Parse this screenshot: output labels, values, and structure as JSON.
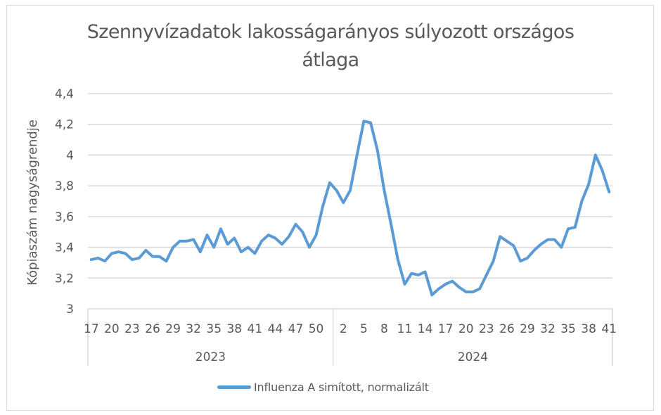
{
  "title": {
    "line1": "Szennyvízadatok lakosságarányos súlyozott országos",
    "line2": "átlaga"
  },
  "colors": {
    "series": "#5b9bd5",
    "grid": "#d9d9d9",
    "text": "#595959",
    "frame": "#d9d9d9"
  },
  "legend": {
    "label": "Influenza A simított, normalizált"
  },
  "chart_data": {
    "type": "line",
    "title": "Szennyvízadatok lakosságarányos súlyozott országos átlaga",
    "xlabel": "",
    "ylabel": "Kópiaszám nagyságrendje",
    "ylim": [
      3,
      4.4
    ],
    "yticks": [
      3,
      3.2,
      3.4,
      3.6,
      3.8,
      4,
      4.2,
      4.4
    ],
    "ytick_labels": [
      "3",
      "3,2",
      "3,4",
      "3,6",
      "3,8",
      "4",
      "4,2",
      "4,4"
    ],
    "grid": true,
    "legend_position": "bottom",
    "x_groups": [
      {
        "label": "2023",
        "weeks": [
          17,
          18,
          19,
          20,
          21,
          22,
          23,
          24,
          25,
          26,
          27,
          28,
          29,
          30,
          31,
          32,
          33,
          34,
          35,
          36,
          37,
          38,
          39,
          40,
          41,
          42,
          43,
          44,
          45,
          46,
          47,
          48,
          49,
          50,
          51,
          52
        ],
        "tick_labels": [
          "17",
          "20",
          "23",
          "26",
          "29",
          "32",
          "35",
          "38",
          "41",
          "44",
          "47",
          "50"
        ]
      },
      {
        "label": "2024",
        "weeks": [
          1,
          2,
          3,
          4,
          5,
          6,
          7,
          8,
          9,
          10,
          11,
          12,
          13,
          14,
          15,
          16,
          17,
          18,
          19,
          20,
          21,
          22,
          23,
          24,
          25,
          26,
          27,
          28,
          29,
          30,
          31,
          32,
          33,
          34,
          35,
          36,
          37,
          38,
          39,
          40,
          41
        ],
        "tick_labels": [
          "2",
          "5",
          "8",
          "11",
          "14",
          "17",
          "20",
          "23",
          "26",
          "29",
          "32",
          "35",
          "38",
          "41"
        ]
      }
    ],
    "series": [
      {
        "name": "Influenza A simított, normalizált",
        "values": [
          3.32,
          3.33,
          3.31,
          3.36,
          3.37,
          3.36,
          3.32,
          3.33,
          3.38,
          3.34,
          3.34,
          3.31,
          3.4,
          3.44,
          3.44,
          3.45,
          3.37,
          3.48,
          3.4,
          3.52,
          3.42,
          3.46,
          3.37,
          3.4,
          3.36,
          3.44,
          3.48,
          3.46,
          3.42,
          3.47,
          3.55,
          3.5,
          3.4,
          3.48,
          3.67,
          3.82,
          3.77,
          3.69,
          3.77,
          4.0,
          4.22,
          4.21,
          4.03,
          3.77,
          3.55,
          3.32,
          3.16,
          3.23,
          3.22,
          3.24,
          3.09,
          3.13,
          3.16,
          3.18,
          3.14,
          3.11,
          3.11,
          3.13,
          3.22,
          3.31,
          3.47,
          3.44,
          3.41,
          3.31,
          3.33,
          3.38,
          3.42,
          3.45,
          3.45,
          3.4,
          3.52,
          3.53,
          3.7,
          3.81,
          4.0,
          3.9,
          3.76
        ]
      }
    ]
  }
}
